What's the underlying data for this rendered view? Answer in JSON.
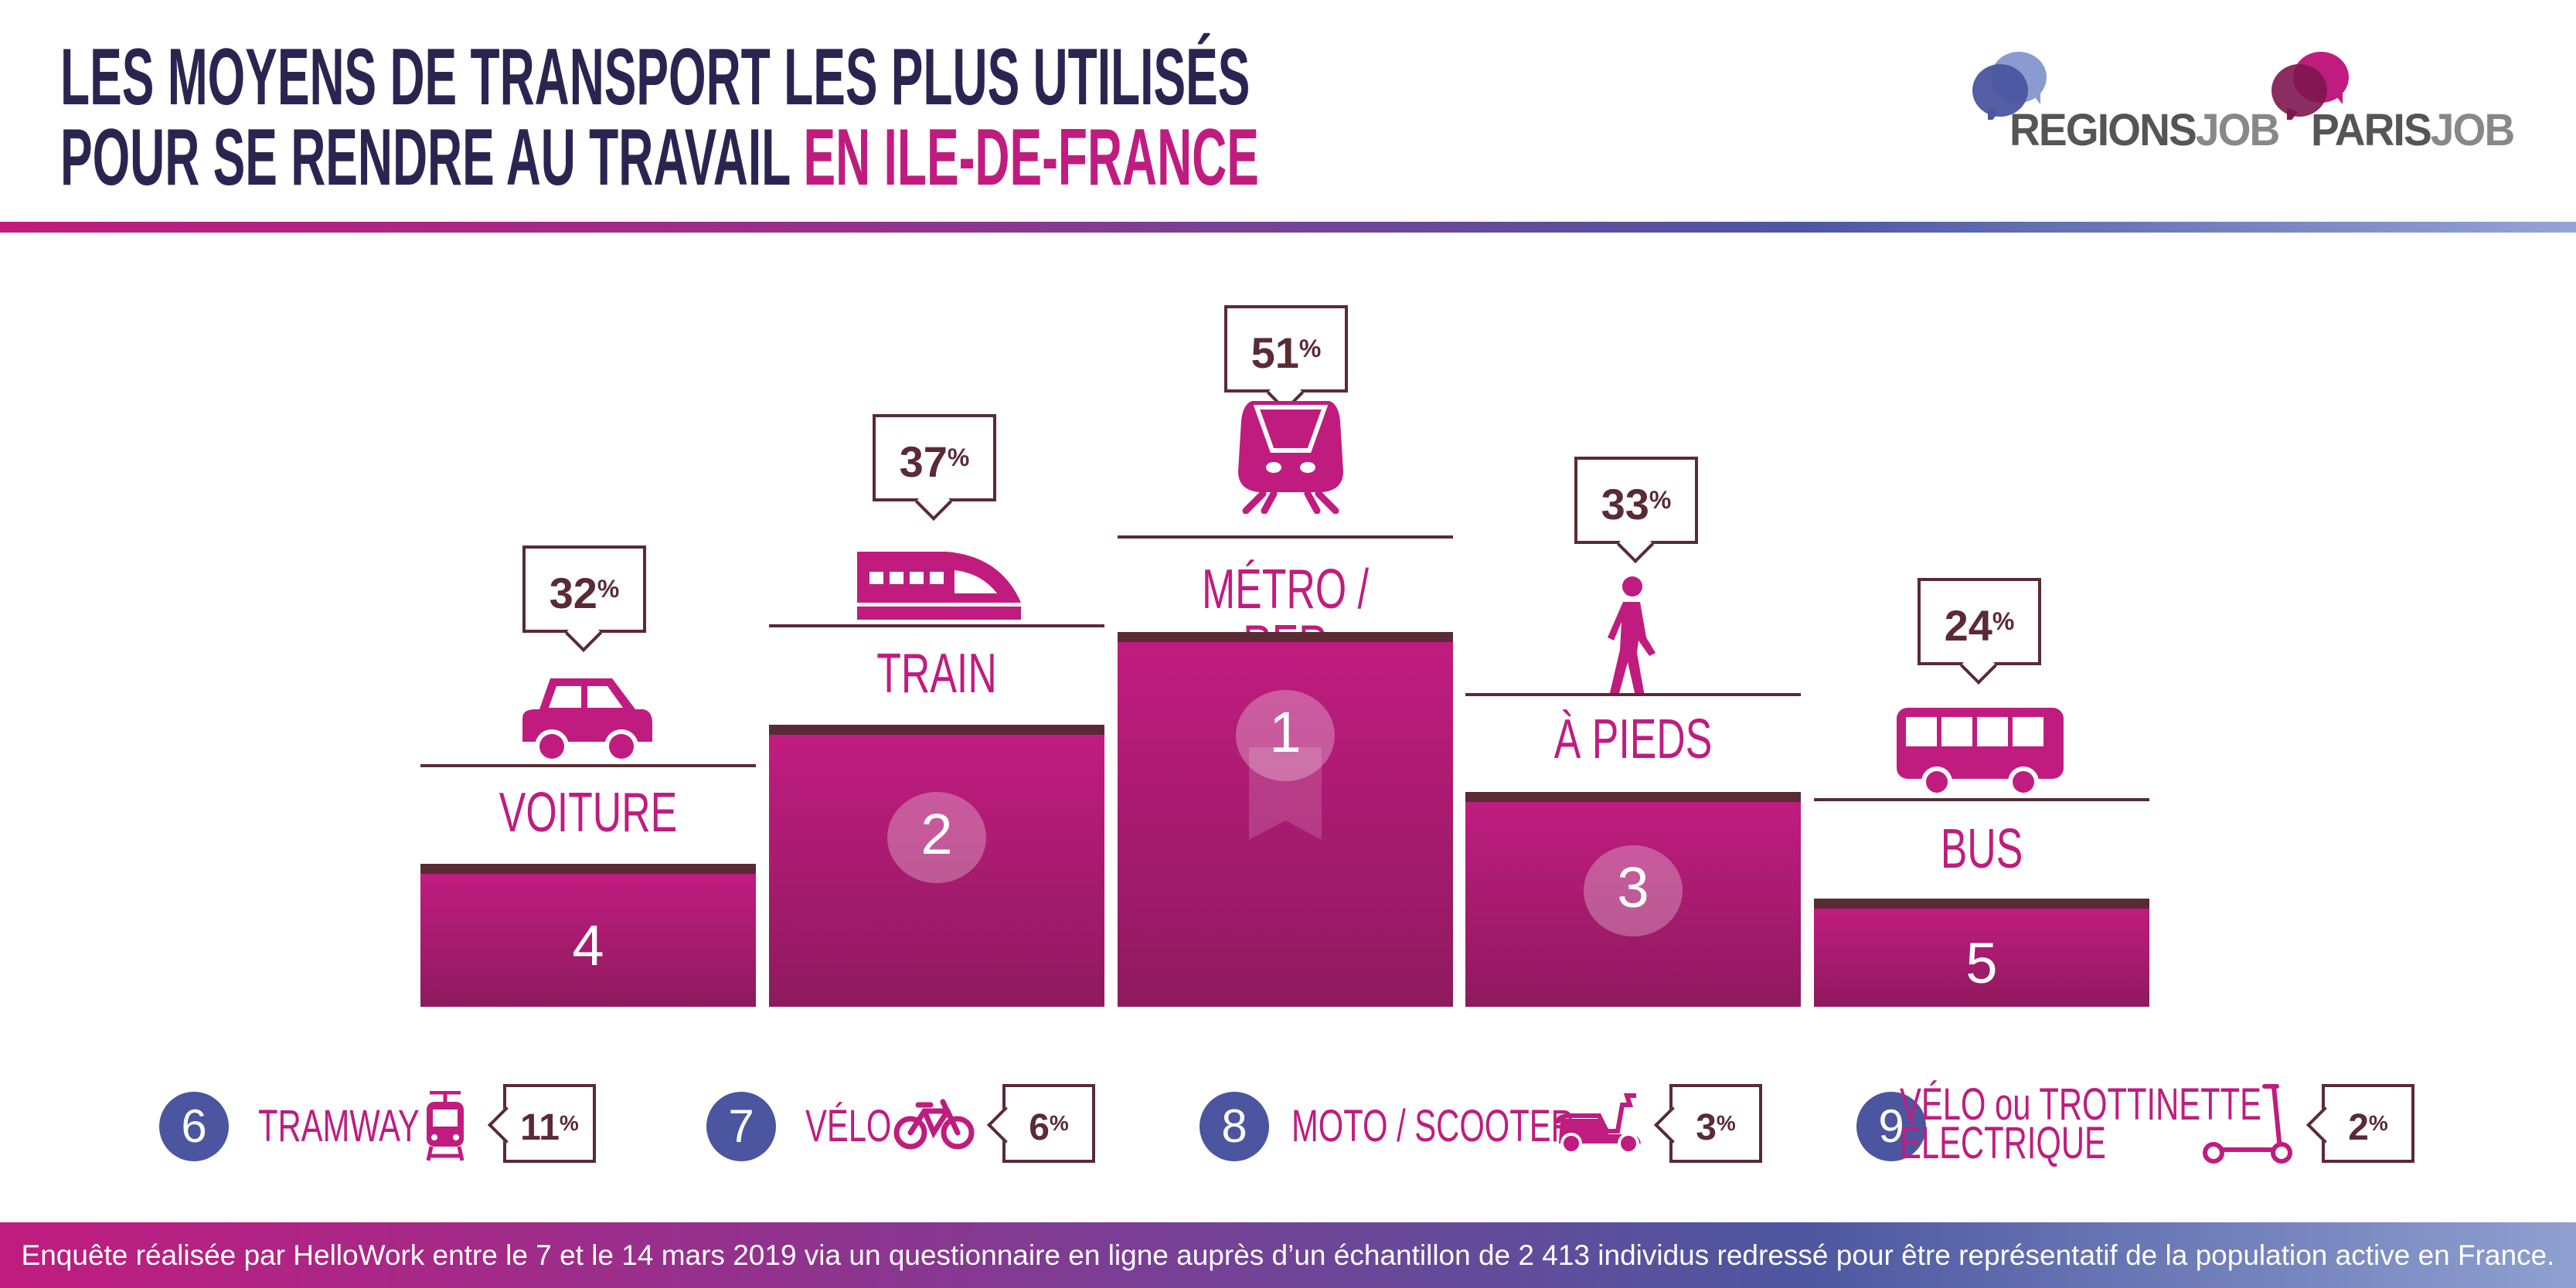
{
  "header": {
    "title_line1": "LES MOYENS DE TRANSPORT LES PLUS UTILISÉS",
    "title_line2_a": "POUR SE RENDRE AU TRAVAIL ",
    "title_line2_b": "EN ILE-DE-FRANCE"
  },
  "logos": {
    "regions_a": "REGIONS",
    "regions_b": "JOB",
    "paris_a": "PARIS",
    "paris_b": "JOB"
  },
  "colors": {
    "magenta": "#c01c7f",
    "brown": "#5a2a35",
    "blue": "#4b55a0"
  },
  "chart_data": {
    "type": "bar",
    "title": "Les moyens de transport les plus utilisés pour se rendre au travail en Ile-de-France",
    "categories": [
      "VOITURE",
      "TRAIN",
      "MÉTRO / RER",
      "À PIEDS",
      "BUS",
      "TRAMWAY",
      "VÉLO",
      "MOTO / SCOOTER",
      "VÉLO ou TROTTINETTE ÉLECTRIQUE"
    ],
    "values": [
      32,
      37,
      51,
      33,
      24,
      11,
      6,
      3,
      2
    ],
    "ranks": [
      4,
      2,
      1,
      3,
      5,
      6,
      7,
      8,
      9
    ],
    "unit": "%"
  },
  "podium": [
    {
      "label": "VOITURE",
      "value": "32",
      "rank": "4",
      "icon": "car-icon"
    },
    {
      "label": "TRAIN",
      "value": "37",
      "rank": "2",
      "icon": "train-icon"
    },
    {
      "label": "MÉTRO / RER",
      "value": "51",
      "rank": "1",
      "icon": "metro-icon"
    },
    {
      "label": "À PIEDS",
      "value": "33",
      "rank": "3",
      "icon": "pedestrian-icon"
    },
    {
      "label": "BUS",
      "value": "24",
      "rank": "5",
      "icon": "bus-icon"
    }
  ],
  "others": [
    {
      "rank": "6",
      "label": "TRAMWAY",
      "value": "11",
      "icon": "tram-icon"
    },
    {
      "rank": "7",
      "label": "VÉLO",
      "value": "6",
      "icon": "bicycle-icon"
    },
    {
      "rank": "8",
      "label": "MOTO / SCOOTER",
      "value": "3",
      "icon": "scooter-icon"
    },
    {
      "rank": "9",
      "label_line1": "VÉLO ou TROTTINETTE",
      "label_line2": "ÉLECTRIQUE",
      "value": "2",
      "icon": "kick-scooter-icon"
    }
  ],
  "percent": "%",
  "footer": "Enquête réalisée par HelloWork entre le 7 et le 14 mars 2019 via un questionnaire en ligne auprès d’un échantillon de 2 413 individus redressé pour être représentatif de la population active en France."
}
